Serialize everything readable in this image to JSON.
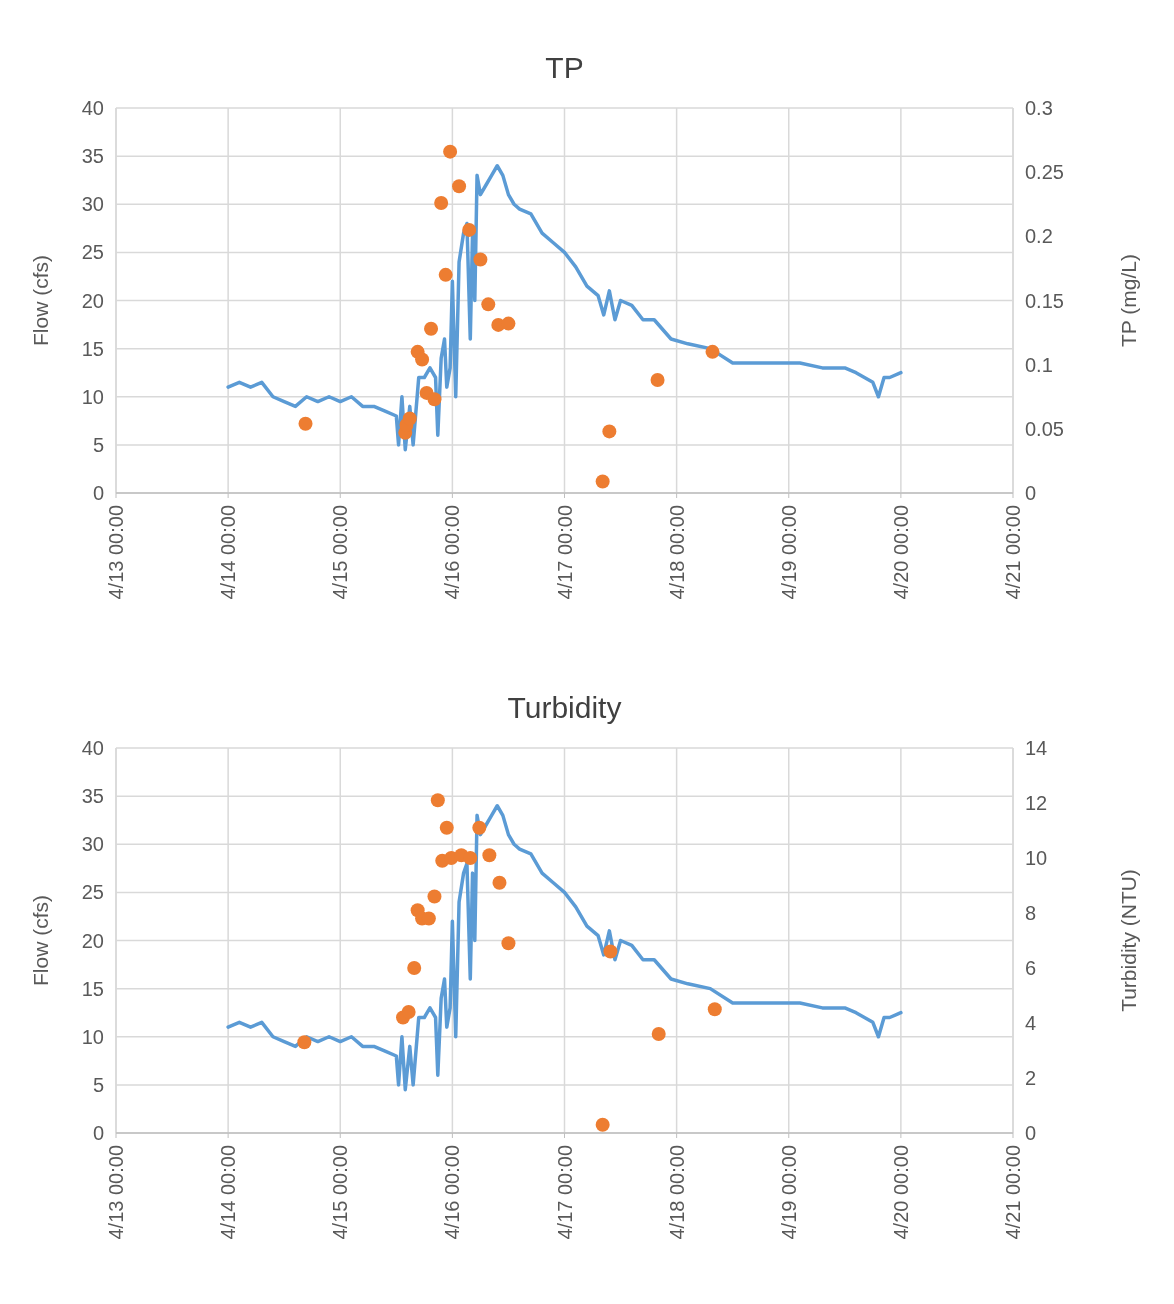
{
  "chart_data": [
    {
      "type": "line",
      "title": "TP",
      "ylabel": "Flow (cfs)",
      "y2label": "TP (mg/L)",
      "xlim": [
        "--04-13T00:00",
        "--04-21T00:00"
      ],
      "xticks": [
        {
          "value": "--04-13T00:00",
          "label": "4/13 00:00"
        },
        {
          "value": "--04-14T00:00",
          "label": "4/14 00:00"
        },
        {
          "value": "--04-15T00:00",
          "label": "4/15 00:00"
        },
        {
          "value": "--04-16T00:00",
          "label": "4/16 00:00"
        },
        {
          "value": "--04-17T00:00",
          "label": "4/17 00:00"
        },
        {
          "value": "--04-18T00:00",
          "label": "4/18 00:00"
        },
        {
          "value": "--04-19T00:00",
          "label": "4/19 00:00"
        },
        {
          "value": "--04-20T00:00",
          "label": "4/20 00:00"
        },
        {
          "value": "--04-21T00:00",
          "label": "4/21 00:00"
        }
      ],
      "ylim": [
        0,
        40
      ],
      "yticks": [
        0,
        5,
        10,
        15,
        20,
        25,
        30,
        35,
        40
      ],
      "y2lim": [
        0,
        0.3
      ],
      "y2ticks": [
        0,
        0.05,
        0.1,
        0.15,
        0.2,
        0.25,
        0.3
      ],
      "grid": true,
      "series": [
        {
          "color": "#5b9bd5",
          "line_style": "solid",
          "marker": "none",
          "x": [
            "--04-14T00:00",
            "--04-14T02:24",
            "--04-14T04:48",
            "--04-14T07:12",
            "--04-14T09:36",
            "--04-14T12:00",
            "--04-14T14:24",
            "--04-14T16:48",
            "--04-14T19:12",
            "--04-14T21:36",
            "--04-15T00:00",
            "--04-15T02:24",
            "--04-15T04:48",
            "--04-15T07:12",
            "--04-15T09:36",
            "--04-15T12:00",
            "--04-15T12:29",
            "--04-15T13:12",
            "--04-15T13:55",
            "--04-15T14:53",
            "--04-15T15:36",
            "--04-15T16:48",
            "--04-15T18:00",
            "--04-15T19:12",
            "--04-15T20:24",
            "--04-15T20:53",
            "--04-15T21:36",
            "--04-15T22:19",
            "--04-15T22:48",
            "--04-15T23:31",
            "--04-16T00:00",
            "--04-16T00:43",
            "--04-16T01:26",
            "--04-16T02:24",
            "--04-16T03:07",
            "--04-16T03:50",
            "--04-16T04:19",
            "--04-16T04:48",
            "--04-16T05:17",
            "--04-16T06:00",
            "--04-16T07:12",
            "--04-16T08:24",
            "--04-16T09:36",
            "--04-16T10:48",
            "--04-16T12:00",
            "--04-16T13:12",
            "--04-16T14:24",
            "--04-16T16:48",
            "--04-16T19:12",
            "--04-16T21:36",
            "--04-17T00:00",
            "--04-17T02:24",
            "--04-17T04:48",
            "--04-17T07:12",
            "--04-17T08:24",
            "--04-17T09:36",
            "--04-17T10:48",
            "--04-17T12:00",
            "--04-17T14:24",
            "--04-17T16:48",
            "--04-17T19:12",
            "--04-17T22:48",
            "--04-18T02:24",
            "--04-18T07:12",
            "--04-18T12:00",
            "--04-18T16:48",
            "--04-18T21:36",
            "--04-19T02:24",
            "--04-19T07:12",
            "--04-19T12:00",
            "--04-19T14:24",
            "--04-19T18:00",
            "--04-19T19:12",
            "--04-19T20:24",
            "--04-19T21:36",
            "--04-20T00:00"
          ],
          "values": [
            11,
            11.5,
            11,
            11.5,
            10,
            9.5,
            9,
            10,
            9.5,
            10,
            9.5,
            10,
            9,
            9,
            8.5,
            8,
            5,
            10,
            4.5,
            9,
            5,
            12,
            12,
            13,
            12,
            6,
            14,
            16,
            11,
            13,
            22,
            10,
            24,
            27,
            28,
            16,
            27,
            20,
            33,
            31,
            32,
            33,
            34,
            33,
            31,
            30,
            29.5,
            29,
            27,
            26,
            25,
            23.5,
            21.5,
            20.5,
            18.5,
            21,
            18,
            20,
            19.5,
            18,
            18,
            16,
            15.5,
            15,
            13.5,
            13.5,
            13.5,
            13.5,
            13,
            13,
            12.5,
            11.5,
            10,
            12,
            12,
            12.5
          ]
        },
        {
          "type": "scatter",
          "axis": "y2",
          "color": "#ed7d31",
          "marker": "circle",
          "x": [
            "--04-14T16:34",
            "--04-15T13:55",
            "--04-15T14:10",
            "--04-15T14:53",
            "--04-15T16:34",
            "--04-15T17:31",
            "--04-15T18:29",
            "--04-15T19:26",
            "--04-15T20:10",
            "--04-15T21:36",
            "--04-15T22:34",
            "--04-15T23:31",
            "--04-16T01:26",
            "--04-16T03:36",
            "--04-16T06:00",
            "--04-16T07:41",
            "--04-16T09:50",
            "--04-16T12:00",
            "--04-17T08:10",
            "--04-17T09:36",
            "--04-17T19:55",
            "--04-18T07:41"
          ],
          "values": [
            0.054,
            0.047,
            0.053,
            0.058,
            0.11,
            0.104,
            0.078,
            0.128,
            0.073,
            0.226,
            0.17,
            0.266,
            0.239,
            0.205,
            0.182,
            0.147,
            0.131,
            0.132,
            0.009,
            0.048,
            0.088,
            0.11
          ]
        }
      ]
    },
    {
      "type": "line",
      "title": "Turbidity",
      "ylabel": "Flow (cfs)",
      "y2label": "Turbidity (NTU)",
      "xlim": [
        "--04-13T00:00",
        "--04-21T00:00"
      ],
      "xticks": [
        {
          "value": "--04-13T00:00",
          "label": "4/13 00:00"
        },
        {
          "value": "--04-14T00:00",
          "label": "4/14 00:00"
        },
        {
          "value": "--04-15T00:00",
          "label": "4/15 00:00"
        },
        {
          "value": "--04-16T00:00",
          "label": "4/16 00:00"
        },
        {
          "value": "--04-17T00:00",
          "label": "4/17 00:00"
        },
        {
          "value": "--04-18T00:00",
          "label": "4/18 00:00"
        },
        {
          "value": "--04-19T00:00",
          "label": "4/19 00:00"
        },
        {
          "value": "--04-20T00:00",
          "label": "4/20 00:00"
        },
        {
          "value": "--04-21T00:00",
          "label": "4/21 00:00"
        }
      ],
      "ylim": [
        0,
        40
      ],
      "yticks": [
        0,
        5,
        10,
        15,
        20,
        25,
        30,
        35,
        40
      ],
      "y2lim": [
        0,
        14
      ],
      "y2ticks": [
        0,
        2,
        4,
        6,
        8,
        10,
        12,
        14
      ],
      "grid": true,
      "series": [
        {
          "color": "#5b9bd5",
          "line_style": "solid",
          "marker": "none",
          "x": [
            "--04-14T00:00",
            "--04-14T02:24",
            "--04-14T04:48",
            "--04-14T07:12",
            "--04-14T09:36",
            "--04-14T12:00",
            "--04-14T14:24",
            "--04-14T16:48",
            "--04-14T19:12",
            "--04-14T21:36",
            "--04-15T00:00",
            "--04-15T02:24",
            "--04-15T04:48",
            "--04-15T07:12",
            "--04-15T09:36",
            "--04-15T12:00",
            "--04-15T12:29",
            "--04-15T13:12",
            "--04-15T13:55",
            "--04-15T14:53",
            "--04-15T15:36",
            "--04-15T16:48",
            "--04-15T18:00",
            "--04-15T19:12",
            "--04-15T20:24",
            "--04-15T20:53",
            "--04-15T21:36",
            "--04-15T22:19",
            "--04-15T22:48",
            "--04-15T23:31",
            "--04-16T00:00",
            "--04-16T00:43",
            "--04-16T01:26",
            "--04-16T02:24",
            "--04-16T03:07",
            "--04-16T03:50",
            "--04-16T04:19",
            "--04-16T04:48",
            "--04-16T05:17",
            "--04-16T06:00",
            "--04-16T07:12",
            "--04-16T08:24",
            "--04-16T09:36",
            "--04-16T10:48",
            "--04-16T12:00",
            "--04-16T13:12",
            "--04-16T14:24",
            "--04-16T16:48",
            "--04-16T19:12",
            "--04-16T21:36",
            "--04-17T00:00",
            "--04-17T02:24",
            "--04-17T04:48",
            "--04-17T07:12",
            "--04-17T08:24",
            "--04-17T09:36",
            "--04-17T10:48",
            "--04-17T12:00",
            "--04-17T14:24",
            "--04-17T16:48",
            "--04-17T19:12",
            "--04-17T22:48",
            "--04-18T02:24",
            "--04-18T07:12",
            "--04-18T12:00",
            "--04-18T16:48",
            "--04-18T21:36",
            "--04-19T02:24",
            "--04-19T07:12",
            "--04-19T12:00",
            "--04-19T14:24",
            "--04-19T18:00",
            "--04-19T19:12",
            "--04-19T20:24",
            "--04-19T21:36",
            "--04-20T00:00"
          ],
          "values": [
            11,
            11.5,
            11,
            11.5,
            10,
            9.5,
            9,
            10,
            9.5,
            10,
            9.5,
            10,
            9,
            9,
            8.5,
            8,
            5,
            10,
            4.5,
            9,
            5,
            12,
            12,
            13,
            12,
            6,
            14,
            16,
            11,
            13,
            22,
            10,
            24,
            27,
            28,
            16,
            27,
            20,
            33,
            31,
            32,
            33,
            34,
            33,
            31,
            30,
            29.5,
            29,
            27,
            26,
            25,
            23.5,
            21.5,
            20.5,
            18.5,
            21,
            18,
            20,
            19.5,
            18,
            18,
            16,
            15.5,
            15,
            13.5,
            13.5,
            13.5,
            13.5,
            13,
            13,
            12.5,
            11.5,
            10,
            12,
            12,
            12.5
          ]
        },
        {
          "type": "scatter",
          "axis": "y2",
          "color": "#ed7d31",
          "marker": "circle",
          "x": [
            "--04-14T16:19",
            "--04-15T13:26",
            "--04-15T14:38",
            "--04-15T15:50",
            "--04-15T16:34",
            "--04-15T17:31",
            "--04-15T18:58",
            "--04-15T20:10",
            "--04-15T20:53",
            "--04-15T21:50",
            "--04-15T22:48",
            "--04-15T23:46",
            "--04-16T01:55",
            "--04-16T03:50",
            "--04-16T05:46",
            "--04-16T07:55",
            "--04-16T10:05",
            "--04-16T12:00",
            "--04-17T08:10",
            "--04-17T09:50",
            "--04-17T20:10",
            "--04-18T08:10"
          ],
          "values": [
            3.3,
            4.2,
            4.4,
            6,
            8.1,
            7.8,
            7.8,
            8.6,
            12.1,
            9.9,
            11.1,
            10,
            10.1,
            10,
            11.1,
            10.1,
            9.1,
            6.9,
            0.3,
            6.6,
            3.6,
            4.5
          ]
        }
      ]
    }
  ]
}
